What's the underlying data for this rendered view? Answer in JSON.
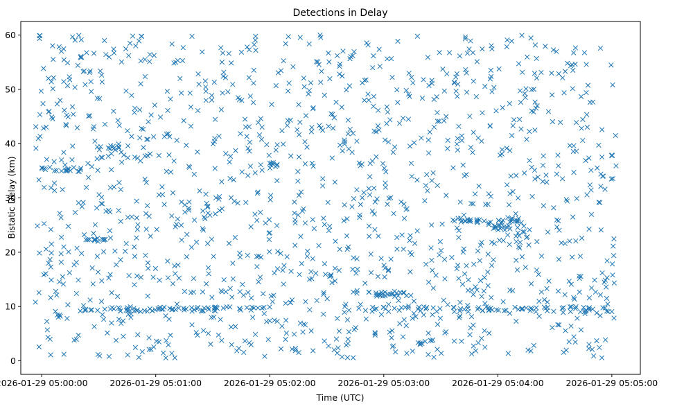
{
  "chart_data": {
    "type": "scatter",
    "title": "Detections in Delay",
    "xlabel": "Time (UTC)",
    "ylabel": "Bistatic Delay (km)",
    "marker": "x",
    "marker_color": "#1f77b4",
    "x_unit": "seconds since 2026-01-29 05:00:00",
    "xlim": [
      -11,
      315
    ],
    "ylim": [
      -2.5,
      62.5
    ],
    "x_ticks": [
      {
        "value": 0,
        "label": "2026-01-29 05:00:00"
      },
      {
        "value": 60,
        "label": "2026-01-29 05:01:00"
      },
      {
        "value": 120,
        "label": "2026-01-29 05:02:00"
      },
      {
        "value": 180,
        "label": "2026-01-29 05:03:00"
      },
      {
        "value": 240,
        "label": "2026-01-29 05:04:00"
      },
      {
        "value": 300,
        "label": "2026-01-29 05:05:00"
      }
    ],
    "y_ticks": [
      {
        "value": 0,
        "label": "0"
      },
      {
        "value": 10,
        "label": "10"
      },
      {
        "value": 20,
        "label": "20"
      },
      {
        "value": 30,
        "label": "30"
      },
      {
        "value": 40,
        "label": "40"
      },
      {
        "value": 50,
        "label": "50"
      },
      {
        "value": 60,
        "label": "60"
      }
    ],
    "x_range": [
      -3.5,
      302.5
    ],
    "y_range": [
      0.5,
      60
    ],
    "clusters": [
      {
        "y": 9.5,
        "x_start": 20,
        "x_end": 120,
        "count": 70
      },
      {
        "y": 9.5,
        "x_start": 160,
        "x_end": 300,
        "count": 70
      },
      {
        "y": 12.2,
        "x_start": 172,
        "x_end": 192,
        "count": 22
      },
      {
        "y": 25.8,
        "x_start": 212,
        "x_end": 253,
        "count": 34
      },
      {
        "y": 24.5,
        "x_start": 237,
        "x_end": 247,
        "count": 12
      },
      {
        "y": 35.2,
        "x_start": 0,
        "x_end": 22,
        "count": 18
      },
      {
        "y": 39.2,
        "x_start": 30,
        "x_end": 42,
        "count": 10
      },
      {
        "y": 22.2,
        "x_start": 24,
        "x_end": 34,
        "count": 10
      },
      {
        "y": 3.4,
        "x_start": 198,
        "x_end": 206,
        "count": 8
      },
      {
        "y": 36.1,
        "x_start": 118,
        "x_end": 124,
        "count": 6
      }
    ],
    "scatter_count": 1350,
    "seed": 7
  }
}
